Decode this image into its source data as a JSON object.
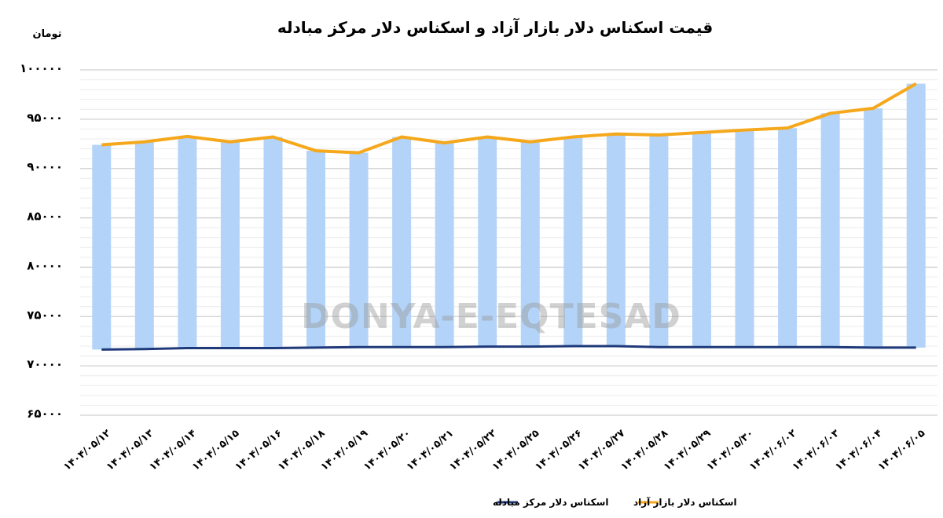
{
  "chart_data": {
    "type": "bar+line",
    "title": "قیمت اسکناس دلار بازار آزاد و اسکناس دلار مرکز مبادله",
    "ylabel": "تومان",
    "ylim": [
      65000,
      100000
    ],
    "yticks": [
      {
        "value": 100000,
        "label": "۱۰۰۰۰۰"
      },
      {
        "value": 95000,
        "label": "۹۵۰۰۰"
      },
      {
        "value": 90000,
        "label": "۹۰۰۰۰"
      },
      {
        "value": 85000,
        "label": "۸۵۰۰۰"
      },
      {
        "value": 80000,
        "label": "۸۰۰۰۰"
      },
      {
        "value": 75000,
        "label": "۷۵۰۰۰"
      },
      {
        "value": 70000,
        "label": "۷۰۰۰۰"
      },
      {
        "value": 65000,
        "label": "۶۵۰۰۰"
      }
    ],
    "grid": true,
    "categories": [
      "۱۴۰۴/۰۵/۱۲",
      "۱۴۰۴/۰۵/۱۳",
      "۱۴۰۴/۰۵/۱۴",
      "۱۴۰۴/۰۵/۱۵",
      "۱۴۰۴/۰۵/۱۶",
      "۱۴۰۴/۰۵/۱۸",
      "۱۴۰۴/۰۵/۱۹",
      "۱۴۰۴/۰۵/۲۰",
      "۱۴۰۴/۰۵/۲۱",
      "۱۴۰۴/۰۵/۲۲",
      "۱۴۰۴/۰۵/۲۵",
      "۱۴۰۴/۰۵/۲۶",
      "۱۴۰۴/۰۵/۲۷",
      "۱۴۰۴/۰۵/۲۸",
      "۱۴۰۴/۰۵/۲۹",
      "۱۴۰۴/۰۵/۳۰",
      "۱۴۰۴/۰۶/۰۲",
      "۱۴۰۴/۰۶/۰۳",
      "۱۴۰۴/۰۶/۰۴",
      "۱۴۰۴/۰۶/۰۵"
    ],
    "series": [
      {
        "name": "اسکناس دلار بازار آزاد",
        "color": "#f5a81c",
        "values": [
          92400,
          92700,
          93250,
          92700,
          93200,
          91800,
          91600,
          93200,
          92600,
          93200,
          92700,
          93200,
          93500,
          93400,
          93650,
          93900,
          94100,
          95600,
          96100,
          98600
        ]
      },
      {
        "name": "اسکناس دلار مرکز مبادله",
        "color": "#1f3a7a",
        "values": [
          71650,
          71700,
          71800,
          71800,
          71800,
          71850,
          71900,
          71900,
          71900,
          71950,
          71950,
          72000,
          72000,
          71900,
          71900,
          71900,
          71900,
          71900,
          71850,
          71850
        ]
      }
    ],
    "bar_color": "#b3d4f8",
    "legend_position": "bottom",
    "watermark": "DONYA-E-EQTESAD"
  }
}
